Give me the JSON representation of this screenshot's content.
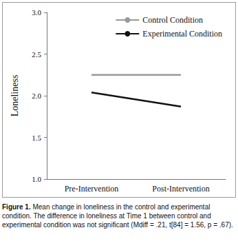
{
  "chart_data": {
    "type": "line",
    "y_label": "Loneliness",
    "categories": [
      "Pre-Intervention",
      "Post-Intervention"
    ],
    "series": [
      {
        "name": "Control Condition",
        "color": "#999999",
        "values": [
          2.25,
          2.25
        ]
      },
      {
        "name": "Experimental Condition",
        "color": "#111111",
        "values": [
          2.04,
          1.87
        ]
      }
    ],
    "ylim": [
      1,
      3
    ],
    "yticks": [
      {
        "value": 1,
        "label": "1.0"
      },
      {
        "value": 1.5,
        "label": "1.5"
      },
      {
        "value": 2,
        "label": "2.0"
      },
      {
        "value": 2.5,
        "label": "2.5"
      },
      {
        "value": 3,
        "label": "3.0"
      }
    ],
    "grid": false,
    "legend": "upper right",
    "caption": {
      "label": "Figure 1.",
      "text": "Mean change in loneliness in the control and experimental condition. The difference in loneliness at Time 1 between control and experimental condition was not significant (Mdiff = .21, t[84] = 1.56, p = .67)."
    }
  }
}
